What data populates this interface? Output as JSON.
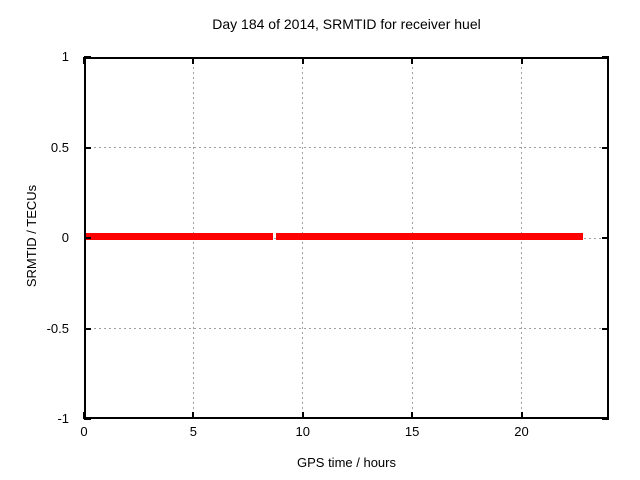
{
  "chart_data": {
    "type": "line",
    "title": "Day 184 of 2014, SRMTID for receiver huel",
    "xlabel": "GPS time / hours",
    "ylabel": "SRMTID / TECUs",
    "xlim": [
      0,
      24
    ],
    "ylim": [
      -1,
      1
    ],
    "xticks": [
      0,
      5,
      10,
      15,
      20
    ],
    "xtick_labels": [
      "0",
      "5",
      "10",
      "15",
      "20"
    ],
    "yticks": [
      1,
      0.5,
      0,
      -0.5,
      -1
    ],
    "ytick_labels": [
      "1",
      "0.5",
      "0",
      "-0.5",
      "-1"
    ],
    "grid": "dashed",
    "legend": "none",
    "series": [
      {
        "name": "SRMTID",
        "color": "#ff0000",
        "y_value": 0,
        "segments_x": [
          [
            0,
            8.64
          ],
          [
            8.78,
            22.82
          ]
        ]
      }
    ],
    "colors": {
      "background": "#ffffff",
      "border": "#000000",
      "grid": "#a0a0a0",
      "text": "#000000",
      "series_red": "#ff0000"
    }
  }
}
